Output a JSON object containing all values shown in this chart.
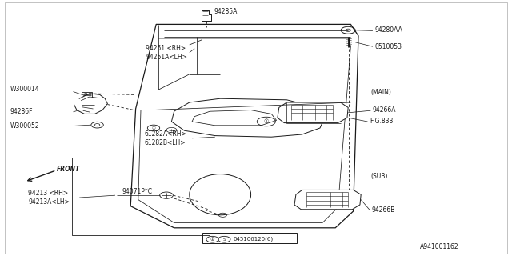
{
  "bg_color": "#ffffff",
  "line_color": "#1a1a1a",
  "fs": 5.5,
  "door_outer": {
    "x": [
      0.305,
      0.685,
      0.7,
      0.69,
      0.66,
      0.345,
      0.255,
      0.265,
      0.305
    ],
    "y": [
      0.095,
      0.095,
      0.13,
      0.82,
      0.89,
      0.89,
      0.81,
      0.43,
      0.095
    ]
  },
  "labels": {
    "94285A": [
      0.415,
      0.055,
      "94285A",
      "left"
    ],
    "94251_RH": [
      0.285,
      0.19,
      "94251 <RH>",
      "left"
    ],
    "94251A_LH": [
      0.285,
      0.225,
      "94251A<LH>",
      "left"
    ],
    "W300014": [
      0.085,
      0.35,
      "W300014",
      "left"
    ],
    "94286F": [
      0.085,
      0.435,
      "94286F",
      "left"
    ],
    "W300052": [
      0.085,
      0.495,
      "W300052",
      "left"
    ],
    "61282A_RH": [
      0.285,
      0.525,
      "61282A<RH>",
      "left"
    ],
    "61282B_LH": [
      0.285,
      0.558,
      "61282B<LH>",
      "left"
    ],
    "94213_RH": [
      0.055,
      0.755,
      "94213 <RH>",
      "left"
    ],
    "94213A_LH": [
      0.055,
      0.785,
      "94213A<LH>",
      "left"
    ],
    "94071PC": [
      0.235,
      0.755,
      "94071P*C",
      "left"
    ],
    "94280AA": [
      0.735,
      0.12,
      "94280AA",
      "left"
    ],
    "0510053": [
      0.735,
      0.185,
      "0510053",
      "left"
    ],
    "MAIN": [
      0.73,
      0.36,
      "(MAIN)",
      "left"
    ],
    "94266A": [
      0.735,
      0.43,
      "94266A",
      "left"
    ],
    "FIG833": [
      0.728,
      0.475,
      "FIG.833",
      "left"
    ],
    "SUB": [
      0.73,
      0.69,
      "(SUB)",
      "left"
    ],
    "94266B": [
      0.728,
      0.82,
      "94266B",
      "left"
    ],
    "A941001162": [
      0.82,
      0.965,
      "A941001162",
      "left"
    ]
  }
}
